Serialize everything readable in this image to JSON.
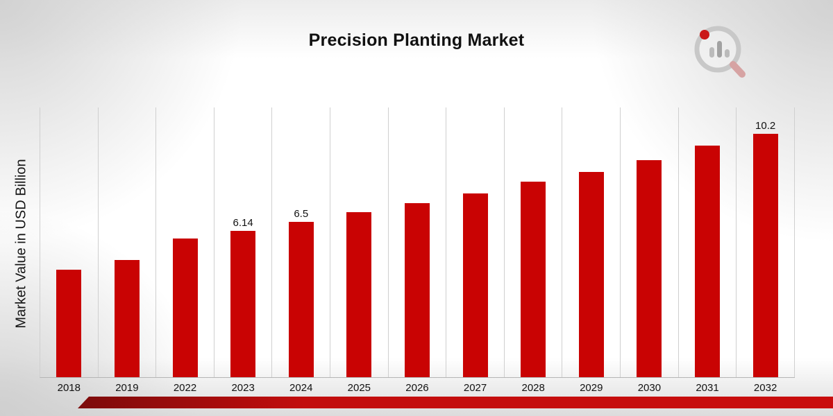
{
  "page": {
    "bottom_ribbon_color": "#c20d0d",
    "background_style": "light gray corner gradients"
  },
  "logo": {
    "name": "bar-chart-magnifier-logo"
  },
  "chart_data": {
    "type": "bar",
    "title": "Precision Planting Market",
    "xlabel": "",
    "ylabel": "Market Value in USD Billion",
    "categories": [
      "2018",
      "2019",
      "2022",
      "2023",
      "2024",
      "2025",
      "2026",
      "2027",
      "2028",
      "2029",
      "2030",
      "2031",
      "2032"
    ],
    "values": [
      4.5,
      4.9,
      5.8,
      6.14,
      6.5,
      6.9,
      7.3,
      7.7,
      8.2,
      8.6,
      9.1,
      9.7,
      10.2
    ],
    "data_labels": {
      "2023": "6.14",
      "2024": "6.5",
      "2032": "10.2"
    },
    "ylim": [
      0,
      11.3
    ],
    "bar_color": "#c90303",
    "grid": "vertical-only",
    "legend": "none"
  }
}
